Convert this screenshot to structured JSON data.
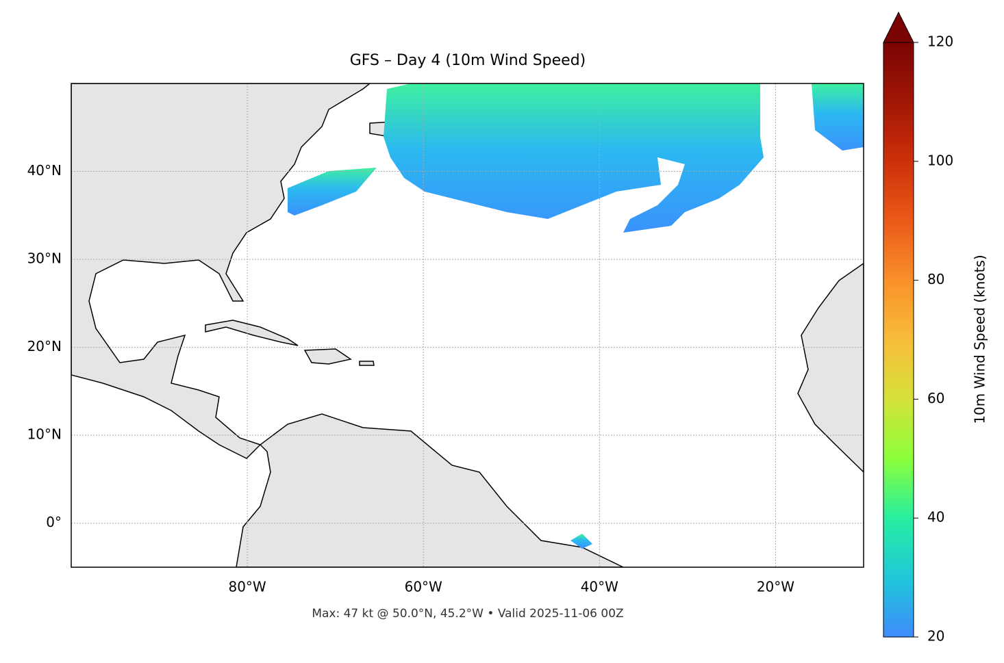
{
  "chart_data": {
    "type": "map",
    "title": "GFS – Day 4 (10m Wind Speed)",
    "annotation": "Max: 47 kt @ 50.0°N, 45.2°W • Valid 2025-11-06 00Z",
    "xlim": [
      -100,
      -10
    ],
    "ylim": [
      -5,
      50
    ],
    "xticks": [
      {
        "value": -80,
        "label": "80°W"
      },
      {
        "value": -60,
        "label": "60°W"
      },
      {
        "value": -40,
        "label": "40°W"
      },
      {
        "value": -20,
        "label": "20°W"
      }
    ],
    "yticks": [
      {
        "value": 0,
        "label": "0°"
      },
      {
        "value": 10,
        "label": "10°N"
      },
      {
        "value": 20,
        "label": "20°N"
      },
      {
        "value": 30,
        "label": "30°N"
      },
      {
        "value": 40,
        "label": "40°N"
      }
    ],
    "grid": true,
    "colorbar": {
      "label": "10m Wind Speed (knots)",
      "lim": [
        20,
        120
      ],
      "ticks": [
        20,
        40,
        60,
        80,
        100,
        120
      ]
    }
  }
}
